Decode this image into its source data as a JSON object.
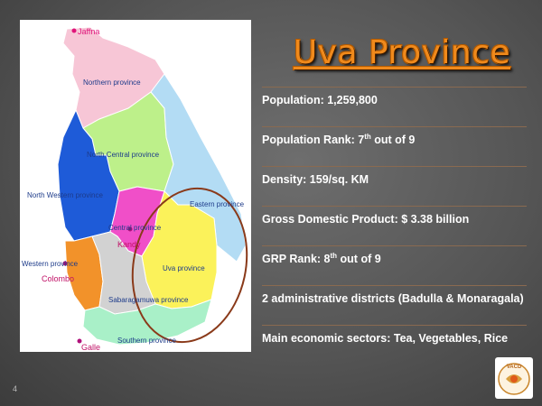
{
  "slide": {
    "title": "Uva Province",
    "page_number": "4",
    "facts": [
      {
        "label": "Population: 1,259,800"
      },
      {
        "pre": "Population Rank: 7",
        "sup": "th",
        "post": " out of 9"
      },
      {
        "label": "Density: 159/sq. KM"
      },
      {
        "label": "Gross Domestic Product: $ 3.38  billion"
      },
      {
        "pre": "GRP Rank: 8",
        "sup": "th",
        "post": " out of 9"
      },
      {
        "label": "2 administrative districts (Badulla & Monaragala)"
      },
      {
        "label": "Main economic sectors: Tea, Vegetables, Rice"
      }
    ]
  },
  "map": {
    "labels": {
      "jaffna": "Jaffna",
      "northern": "Northern province",
      "north_central": "North Central province",
      "north_western": "North Western province",
      "eastern": "Eastern province",
      "central": "Central province",
      "kandy": "Kandy",
      "uva": "Uva province",
      "western": "Western province",
      "colombo": "Colombo",
      "sabaragamuwa": "Sabaragamuwa province",
      "southern": "Southern province",
      "galle": "Galle"
    },
    "colors": {
      "northern": "#f7c6d6",
      "north_central": "#bdf08a",
      "north_western": "#1e5bd8",
      "eastern": "#b3dcf4",
      "central": "#f04fc8",
      "uva": "#fbf25a",
      "western": "#f2922a",
      "sabaragamuwa": "#d2d2d2",
      "southern": "#a9f0c8",
      "highlight_oval": "#8a3a1a"
    }
  },
  "logo": {
    "text": "VACD"
  }
}
